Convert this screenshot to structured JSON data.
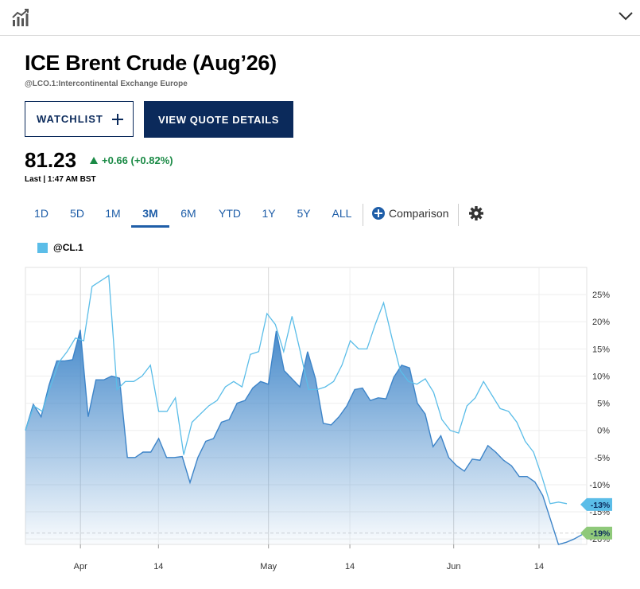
{
  "header": {
    "chart_icon": "bar-chart-trend-icon",
    "collapse_icon": "chevron-down-icon"
  },
  "instrument": {
    "title": "ICE Brent Crude (Aug’26)",
    "subtitle": "@LCO.1:Intercontinental Exchange Europe",
    "price": "81.23",
    "change": "+0.66 (+0.82%)",
    "last_time": "Last | 1:47 AM BST",
    "up_color": "#1a8a45"
  },
  "actions": {
    "watchlist_label": "WATCHLIST",
    "quote_label": "VIEW QUOTE DETAILS"
  },
  "ranges": {
    "items": [
      "1D",
      "5D",
      "1M",
      "3M",
      "6M",
      "YTD",
      "1Y",
      "5Y",
      "ALL"
    ],
    "active": "3M",
    "comparison_label": "Comparison",
    "settings_icon": "gear-icon"
  },
  "colors": {
    "brand_navy": "#0b2a5b",
    "link_blue": "#1f5ea8",
    "series_main": "#3d84c8",
    "series_compare": "#5bbde8",
    "badge_blue": "#5bbde8",
    "badge_green": "#8fc97a"
  },
  "chart_data": {
    "type": "area",
    "legend": [
      {
        "name": "@CL.1",
        "color": "#5bbde8"
      }
    ],
    "x_ticks": [
      "Apr",
      "14",
      "May",
      "14",
      "Jun",
      "14"
    ],
    "y_ticks": [
      "25%",
      "20%",
      "15%",
      "10%",
      "5%",
      "0%",
      "-5%",
      "-10%",
      "-15%",
      "-20%"
    ],
    "ylim": [
      -21,
      30
    ],
    "grid": true,
    "series": [
      {
        "role": "main",
        "style": "area",
        "values": [
          0,
          4.8,
          2.5,
          8.3,
          12.8,
          12.8,
          13.0,
          18.5,
          2.5,
          9.3,
          9.3,
          10.0,
          9.6,
          -5.0,
          -5.0,
          -4.0,
          -4.0,
          -1.5,
          -5.0,
          -5.0,
          -4.8,
          -9.6,
          -5.0,
          -2.0,
          -1.5,
          1.5,
          2.0,
          5.0,
          5.5,
          7.8,
          9.0,
          8.5,
          18.3,
          11.0,
          9.5,
          8.0,
          14.5,
          9.5,
          1.3,
          1.0,
          2.5,
          4.5,
          7.5,
          7.8,
          5.5,
          6.0,
          5.8,
          9.8,
          12.0,
          11.5,
          5.0,
          3.0,
          -3.0,
          -1.0,
          -5.0,
          -6.5,
          -7.5,
          -5.3,
          -5.5,
          -2.8,
          -4.0,
          -5.5,
          -6.5,
          -8.5,
          -8.5,
          -9.5,
          -12.0,
          -16.5,
          -21.0,
          -20.6,
          -20.0,
          -19.2
        ],
        "end_label": "-19%",
        "end_color": "#8fc97a"
      },
      {
        "name": "@CL.1",
        "role": "comparison",
        "style": "line",
        "values": [
          0,
          4.5,
          3.5,
          8.0,
          12.5,
          14.5,
          17.0,
          16.5,
          26.5,
          27.5,
          28.5,
          7.5,
          9.0,
          9.0,
          10.0,
          12.0,
          3.5,
          3.5,
          6.0,
          -4.5,
          1.5,
          3.0,
          4.5,
          5.5,
          8.0,
          9.0,
          8.0,
          14.0,
          14.5,
          21.5,
          19.5,
          14.5,
          21.0,
          14.5,
          7.5,
          7.5,
          8.0,
          9.0,
          12.0,
          16.5,
          15.0,
          15.0,
          19.5,
          23.5,
          17.0,
          11.0,
          9.0,
          8.5,
          9.5,
          7.0,
          2.0,
          0,
          -0.5,
          4.5,
          6.0,
          9.0,
          6.5,
          4.0,
          3.5,
          1.5,
          -2.0,
          -4.0,
          -8.5,
          -13.5,
          -13.2,
          -13.5
        ],
        "end_label": "-13%",
        "end_color": "#5bbde8"
      }
    ]
  }
}
